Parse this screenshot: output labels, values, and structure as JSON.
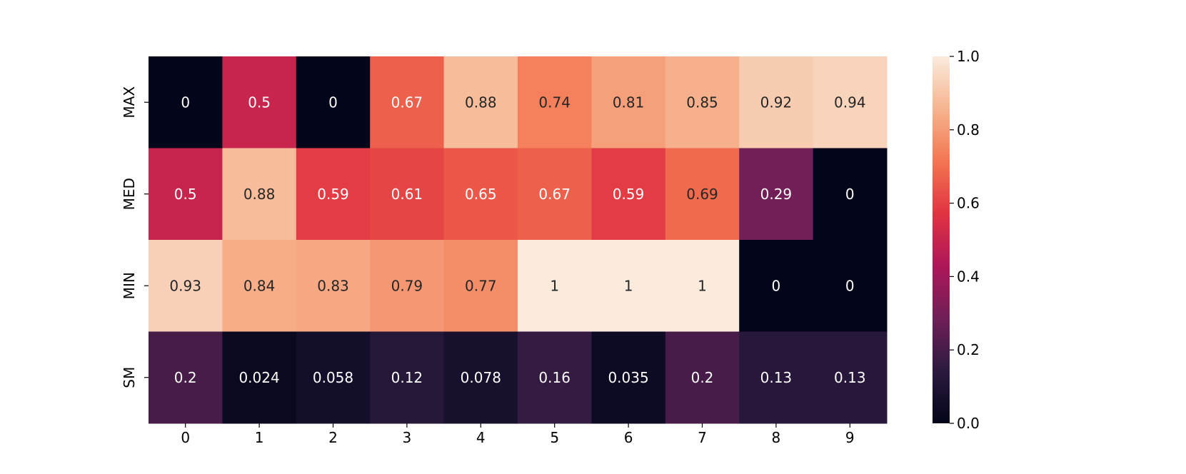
{
  "chart_data": {
    "type": "heatmap",
    "title": "",
    "xlabel": "",
    "ylabel": "",
    "x_categories": [
      "0",
      "1",
      "2",
      "3",
      "4",
      "5",
      "6",
      "7",
      "8",
      "9"
    ],
    "y_categories": [
      "MAX",
      "MED",
      "MIN",
      "SM"
    ],
    "values": [
      [
        0,
        0.5,
        0,
        0.67,
        0.88,
        0.74,
        0.81,
        0.85,
        0.92,
        0.94
      ],
      [
        0.5,
        0.88,
        0.59,
        0.61,
        0.65,
        0.67,
        0.59,
        0.69,
        0.29,
        0
      ],
      [
        0.93,
        0.84,
        0.83,
        0.79,
        0.77,
        1,
        1,
        1,
        0,
        0
      ],
      [
        0.2,
        0.024,
        0.058,
        0.12,
        0.078,
        0.16,
        0.035,
        0.2,
        0.13,
        0.13
      ]
    ],
    "cell_labels": [
      [
        "0",
        "0.5",
        "0",
        "0.67",
        "0.88",
        "0.74",
        "0.81",
        "0.85",
        "0.92",
        "0.94"
      ],
      [
        "0.5",
        "0.88",
        "0.59",
        "0.61",
        "0.65",
        "0.67",
        "0.59",
        "0.69",
        "0.29",
        "0"
      ],
      [
        "0.93",
        "0.84",
        "0.83",
        "0.79",
        "0.77",
        "1",
        "1",
        "1",
        "0",
        "0"
      ],
      [
        "0.2",
        "0.024",
        "0.058",
        "0.12",
        "0.078",
        "0.16",
        "0.035",
        "0.2",
        "0.13",
        "0.13"
      ]
    ],
    "colorbar": {
      "range": [
        0.0,
        1.0
      ],
      "ticks": [
        0.0,
        0.2,
        0.4,
        0.6,
        0.8,
        1.0
      ],
      "tick_labels": [
        "0.0",
        "0.2",
        "0.4",
        "0.6",
        "0.8",
        "1.0"
      ],
      "colormap": "rocket",
      "colormap_stops": [
        "#03051a",
        "#2b1a3e",
        "#701f57",
        "#ad1759",
        "#e13342",
        "#f37651",
        "#f6b48f",
        "#faebdd"
      ]
    },
    "legend": "right"
  }
}
